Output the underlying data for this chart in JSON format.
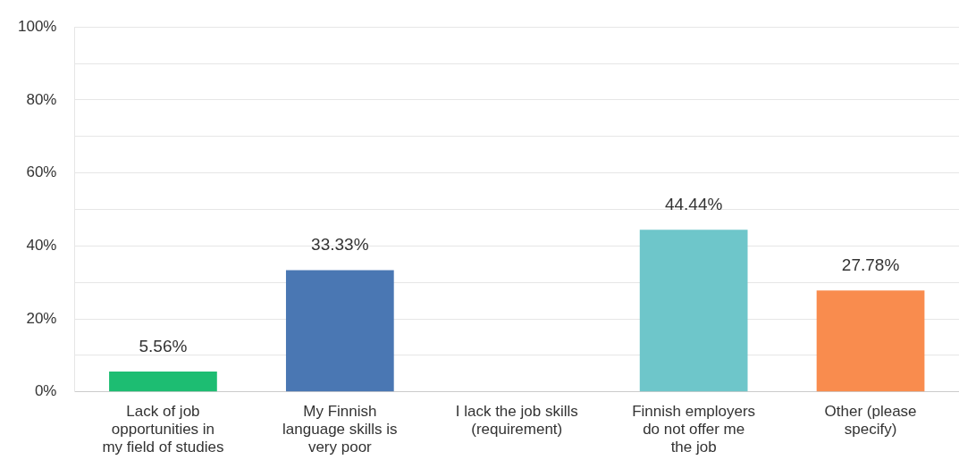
{
  "chart_data": {
    "type": "bar",
    "categories": [
      "Lack of job opportunities in my field of studies",
      "My Finnish language skills is very poor",
      "I lack the job skills (requirement)",
      "Finnish employers do not offer me the job",
      "Other (please specify)"
    ],
    "values": [
      5.56,
      33.33,
      0,
      44.44,
      27.78
    ],
    "colors": [
      "#1dbd72",
      "#4a77b3",
      "#8a8a8a",
      "#6ec6ca",
      "#f98c4e"
    ],
    "value_labels": [
      "5.56%",
      "33.33%",
      null,
      "44.44%",
      "27.78%"
    ],
    "ylim": [
      0,
      100
    ],
    "yticks": [
      {
        "value": 0,
        "label": "0%"
      },
      {
        "value": 10,
        "label": null
      },
      {
        "value": 20,
        "label": "20%"
      },
      {
        "value": 30,
        "label": null
      },
      {
        "value": 40,
        "label": "40%"
      },
      {
        "value": 50,
        "label": null
      },
      {
        "value": 60,
        "label": "60%"
      },
      {
        "value": 70,
        "label": null
      },
      {
        "value": 80,
        "label": "80%"
      },
      {
        "value": 90,
        "label": null
      },
      {
        "value": 100,
        "label": "100%"
      }
    ],
    "grid": "y",
    "legend": false
  }
}
